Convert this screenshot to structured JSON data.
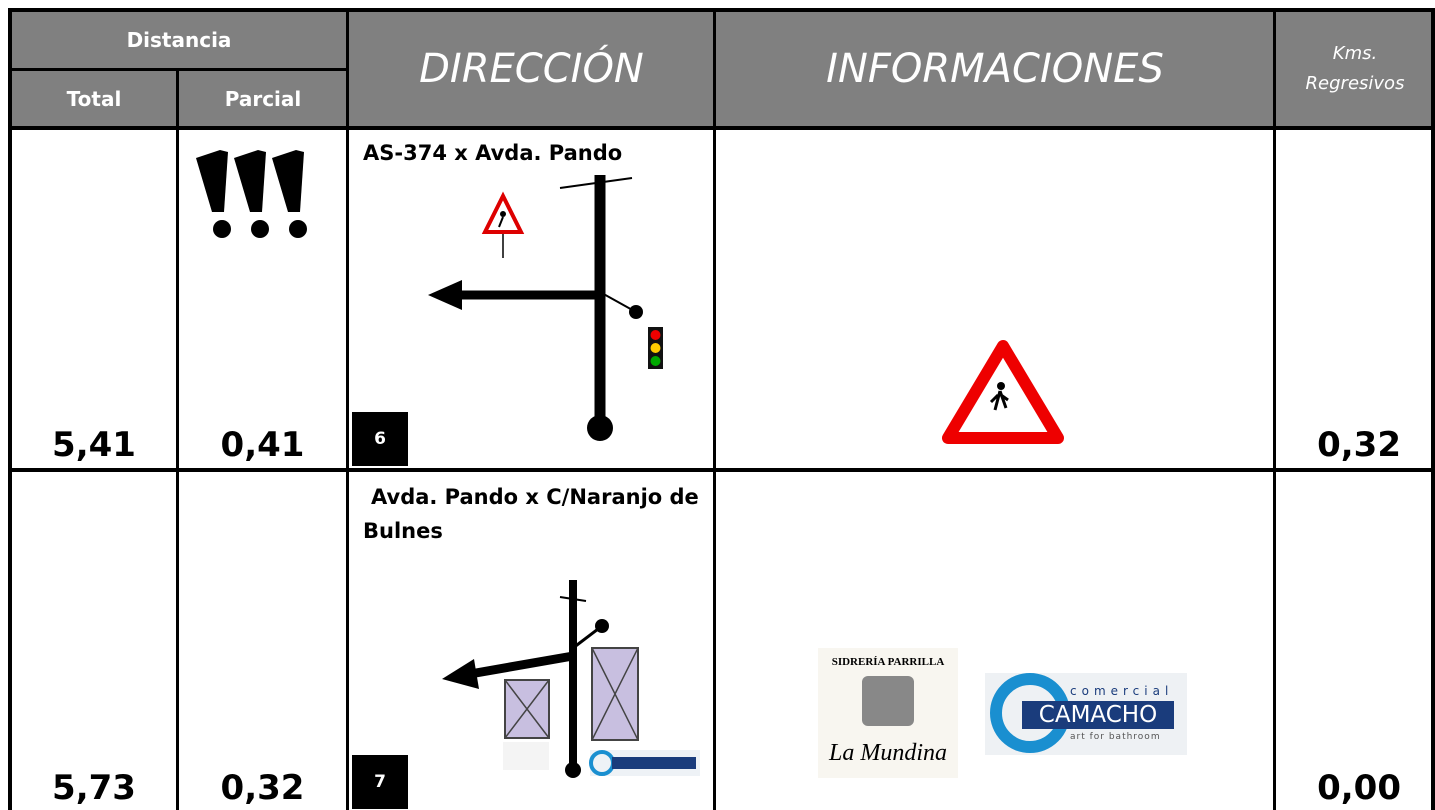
{
  "header": {
    "distancia": "Distancia",
    "total": "Total",
    "parcial": "Parcial",
    "direccion": "DIRECCIÓN",
    "informaciones": "INFORMACIONES",
    "kms": [
      "Kms.",
      "Regresivos"
    ]
  },
  "rows": [
    {
      "total": "5,41",
      "parcial": "0,41",
      "direccion": "AS-374 x Avda. Pando",
      "paso": "6",
      "kms": "0,32"
    },
    {
      "total": "5,73",
      "parcial": "0,32",
      "direccion": "Avda. Pando x C/Naranjo de Bulnes",
      "paso": "7",
      "kms": "0,00",
      "logos": {
        "sidreria": "SIDRERÍA PARRILLA",
        "mundina": "La Mundina",
        "comercial": "comercial",
        "camacho": "CAMACHO",
        "tagline": "art for bathroom"
      }
    }
  ]
}
